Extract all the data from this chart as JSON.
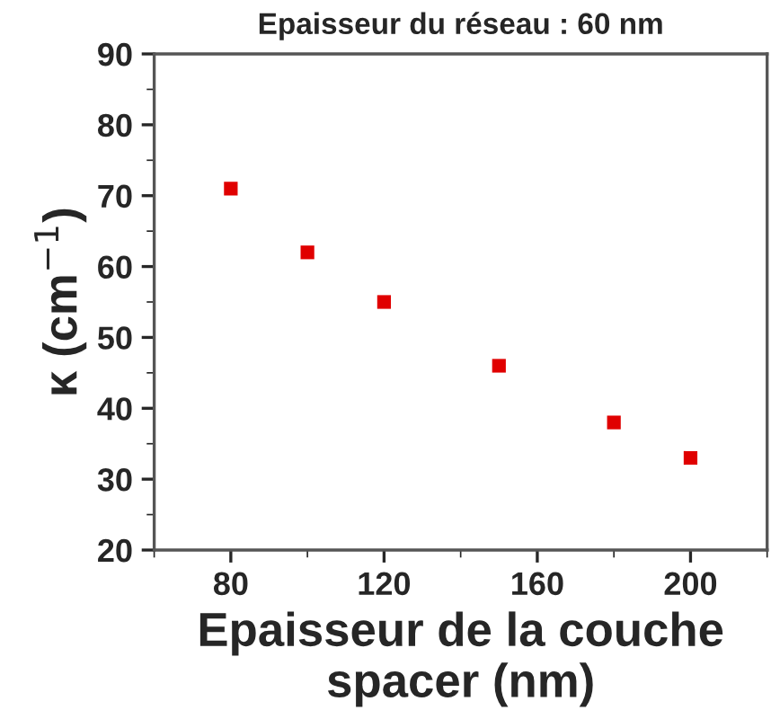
{
  "chart_data": {
    "type": "scatter",
    "title": "Epaisseur du réseau : 60 nm",
    "xlabel": "Epaisseur de la couche spacer (nm)",
    "ylabel": "κ (cm$^{−1}$)",
    "x": [
      80,
      100,
      120,
      150,
      180,
      200
    ],
    "series": [
      {
        "color": "#e00000",
        "values": [
          71,
          62,
          55,
          46,
          38,
          33
        ]
      }
    ],
    "marker": "square",
    "xlim": [
      60,
      220
    ],
    "xticks": [
      80,
      120,
      160,
      200
    ],
    "ylim": [
      20,
      90
    ],
    "yticks": [
      20,
      30,
      40,
      50,
      60,
      70,
      80,
      90
    ],
    "grid": false,
    "legend": false
  }
}
